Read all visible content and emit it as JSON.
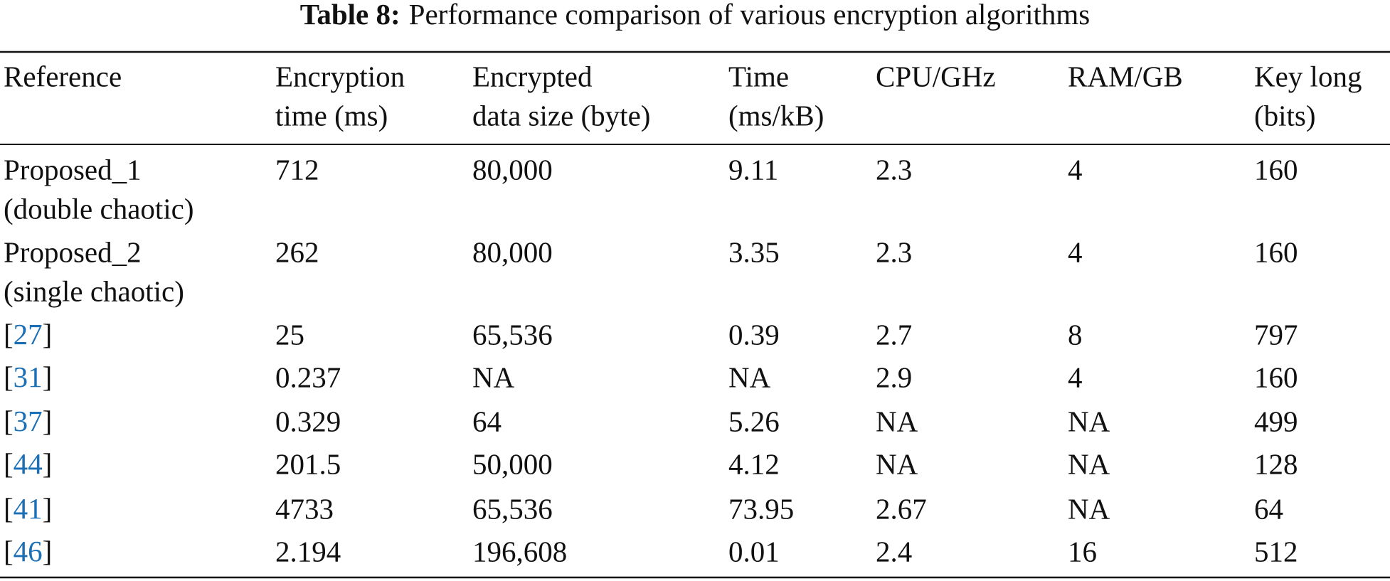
{
  "caption": {
    "label": "Table 8:",
    "text": "Performance comparison of various encryption algorithms"
  },
  "table": {
    "header": [
      [
        "Reference"
      ],
      [
        "Encryption",
        "time (ms)"
      ],
      [
        "Encrypted",
        "data size (byte)"
      ],
      [
        "Time",
        "(ms/kB)"
      ],
      [
        "CPU/GHz"
      ],
      [
        "RAM/GB"
      ],
      [
        "Key long",
        "(bits)"
      ]
    ],
    "rows": [
      {
        "ref_lines": [
          "Proposed_1",
          "(double chaotic)"
        ],
        "cells": [
          "712",
          "80,000",
          "9.11",
          "2.3",
          "4",
          "160"
        ]
      },
      {
        "ref_lines": [
          "Proposed_2",
          "(single chaotic)"
        ],
        "cells": [
          "262",
          "80,000",
          "3.35",
          "2.3",
          "4",
          "160"
        ]
      },
      {
        "ref": {
          "open": "[",
          "id": "27",
          "close": "]"
        },
        "cells": [
          "25",
          "65,536",
          "0.39",
          "2.7",
          "8",
          "797"
        ]
      },
      {
        "ref": {
          "open": "[",
          "id": "31",
          "close": "]"
        },
        "cells": [
          "0.237",
          "NA",
          "NA",
          "2.9",
          "4",
          "160"
        ]
      },
      {
        "ref": {
          "open": "[",
          "id": "37",
          "close": "]"
        },
        "cells": [
          "0.329",
          "64",
          "5.26",
          "NA",
          "NA",
          "499"
        ]
      },
      {
        "ref": {
          "open": "[",
          "id": "44",
          "close": "]"
        },
        "cells": [
          "201.5",
          "50,000",
          "4.12",
          "NA",
          "NA",
          "128"
        ]
      },
      {
        "ref": {
          "open": "[",
          "id": "41",
          "close": "]"
        },
        "cells": [
          "4733",
          "65,536",
          "73.95",
          "2.67",
          "NA",
          "64"
        ]
      },
      {
        "ref": {
          "open": "[",
          "id": "46",
          "close": "]"
        },
        "cells": [
          "2.194",
          "196,608",
          "0.01",
          "2.4",
          "16",
          "512"
        ]
      }
    ]
  }
}
